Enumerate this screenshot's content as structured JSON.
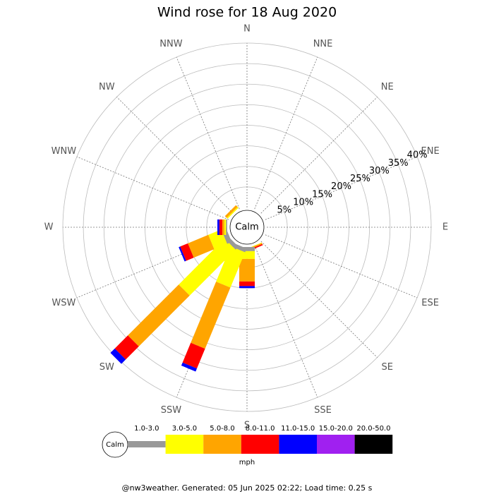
{
  "chart_data": {
    "type": "windrose",
    "title": "Wind rose for 18 Aug 2020",
    "center_label": "Calm",
    "categories": [
      "N",
      "NNE",
      "NE",
      "ENE",
      "E",
      "ESE",
      "SE",
      "SSE",
      "S",
      "SSW",
      "SW",
      "WSW",
      "W",
      "WNW",
      "NW",
      "NNW"
    ],
    "rlim": [
      0,
      40
    ],
    "rticks": [
      {
        "value": 5,
        "label": "5%"
      },
      {
        "value": 10,
        "label": "10%"
      },
      {
        "value": 15,
        "label": "15%"
      },
      {
        "value": 20,
        "label": "20%"
      },
      {
        "value": 25,
        "label": "25%"
      },
      {
        "value": 30,
        "label": "30%"
      },
      {
        "value": 35,
        "label": "35%"
      },
      {
        "value": 40,
        "label": "40%"
      }
    ],
    "series": [
      {
        "name": "1.0-3.0",
        "color": "#999999",
        "values": [
          0,
          0,
          0,
          0,
          0,
          0,
          0,
          0,
          1,
          1,
          1,
          1.2,
          0.3,
          0,
          0,
          0
        ]
      },
      {
        "name": "3.0-5.0",
        "color": "#ffff00",
        "values": [
          0,
          0,
          0,
          0,
          0,
          0,
          0,
          0.1,
          1.9,
          9.3,
          15.8,
          3.4,
          0.4,
          0,
          0.3,
          0
        ]
      },
      {
        "name": "5.0-8.0",
        "color": "#ffa500",
        "values": [
          0,
          0,
          0,
          0,
          0,
          0,
          0,
          0.3,
          5.5,
          16.1,
          17.5,
          5.4,
          0.5,
          0,
          0.6,
          0
        ]
      },
      {
        "name": "8.0-11.0",
        "color": "#ff0000",
        "values": [
          0,
          0,
          0,
          0,
          0,
          0,
          0,
          0.3,
          1.1,
          5.2,
          4.5,
          2,
          0.7,
          0,
          0,
          0
        ]
      },
      {
        "name": "11.0-15.0",
        "color": "#0000ff",
        "values": [
          0,
          0,
          0,
          0,
          0,
          0,
          0,
          0,
          0.5,
          0.8,
          1.5,
          0.4,
          0.5,
          0,
          0,
          0
        ]
      },
      {
        "name": "15.0-20.0",
        "color": "#a020f0",
        "values": [
          0,
          0,
          0,
          0,
          0,
          0,
          0,
          0,
          0,
          0,
          0,
          0,
          0,
          0,
          0,
          0
        ]
      },
      {
        "name": "20.0-50.0",
        "color": "#000000",
        "values": [
          0,
          0,
          0,
          0,
          0,
          0,
          0,
          0,
          0,
          0,
          0,
          0,
          0,
          0,
          0,
          0
        ]
      }
    ],
    "legend_unit": "mph",
    "footer": "@nw3weather. Generated: 05 Jun 2025 02:22; Load time: 0.25 s"
  }
}
